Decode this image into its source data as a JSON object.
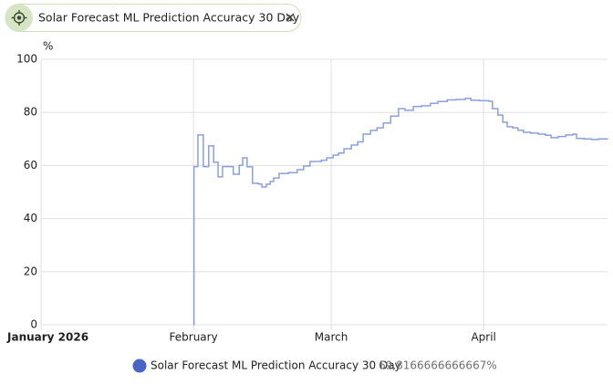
{
  "filter": {
    "label": "Solar Forecast ML Prediction Accuracy 30 Day"
  },
  "chart_data": {
    "type": "line",
    "step": "after",
    "y_label": "%",
    "x": [
      31.0,
      31.1,
      31.9,
      33.0,
      34.1,
      35.1,
      36.0,
      36.9,
      39.1,
      40.3,
      41.0,
      41.9,
      43.0,
      44.2,
      44.9,
      45.8,
      46.6,
      47.3,
      48.4,
      50.3,
      52.1,
      53.4,
      54.7,
      57.0,
      58.1,
      59.4,
      60.5,
      61.6,
      63.1,
      64.4,
      65.5,
      67.0,
      68.3,
      69.6,
      71.1,
      72.7,
      74.0,
      75.7,
      77.4,
      79.2,
      80.7,
      82.6,
      84.4,
      86.3,
      87.4,
      89.2,
      91.1,
      91.8,
      92.9,
      93.9,
      94.8,
      95.9,
      97.0,
      98.1,
      99.6,
      101.1,
      102.6,
      103.7,
      105.2,
      106.7,
      108.2,
      108.9,
      110.4,
      111.9,
      113.4,
      115.2
    ],
    "series": [
      {
        "name": "Solar Forecast ML Prediction Accuracy 30 Day",
        "color": "#8aa0dc",
        "legend_color": "#4a63c6",
        "values": [
          0,
          59.6,
          71.5,
          59.6,
          67.4,
          61.2,
          55.7,
          59.6,
          56.7,
          60.1,
          62.9,
          59.5,
          53.3,
          53.0,
          51.9,
          52.9,
          54.0,
          55.3,
          57.0,
          57.3,
          58.4,
          59.8,
          61.5,
          62.0,
          62.9,
          63.9,
          64.7,
          66.3,
          67.7,
          68.9,
          71.8,
          73.2,
          74.2,
          76.0,
          78.6,
          81.4,
          80.8,
          82.2,
          82.5,
          83.4,
          84.1,
          84.7,
          84.9,
          85.3,
          84.6,
          84.4,
          84.2,
          81.4,
          79.0,
          76.3,
          74.6,
          74.2,
          73.3,
          72.5,
          72.2,
          71.8,
          71.4,
          70.5,
          70.9,
          71.5,
          71.8,
          70.2,
          70.0,
          69.8,
          70.0,
          69.8
        ]
      }
    ],
    "legend_value": "69,8166666666667%",
    "xlim": [
      0,
      115.2
    ],
    "xticks": [
      {
        "value": 0,
        "label": "January 2026"
      },
      {
        "value": 31,
        "label": "February"
      },
      {
        "value": 59,
        "label": "March"
      },
      {
        "value": 90,
        "label": "April"
      }
    ],
    "ylim": [
      0,
      100
    ],
    "yticks": [
      0,
      20,
      40,
      60,
      80,
      100
    ],
    "grid": true
  }
}
